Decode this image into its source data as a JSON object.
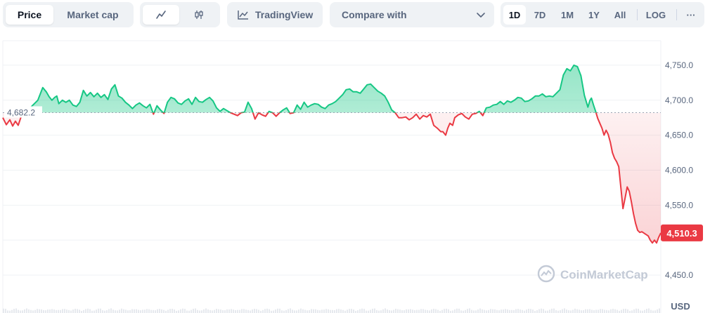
{
  "toolbar": {
    "tabs": [
      "Price",
      "Market cap"
    ],
    "active_tab": "Price",
    "chart_type_icons": [
      "line-chart-icon",
      "candlestick-chart-icon"
    ],
    "tradingview_label": "TradingView",
    "compare_label": "Compare with",
    "ranges": [
      "1D",
      "7D",
      "1M",
      "1Y",
      "All"
    ],
    "active_range": "1D",
    "log_label": "LOG",
    "more_label": "···"
  },
  "chart_data": {
    "type": "area",
    "reference_value": 4682.2,
    "reference_label": "4,682.2",
    "current_value": 4510.3,
    "current_label": "4,510.3",
    "currency": "USD",
    "watermark": "CoinMarketCap",
    "ylim": [
      4440,
      4785
    ],
    "yticks": [
      4450,
      4500,
      4550,
      4600,
      4650,
      4700,
      4750
    ],
    "ytick_labels": [
      "4,450.0",
      "",
      "4,550.0",
      "4,600.0",
      "4,650.0",
      "4,700.0",
      "4,750.0"
    ],
    "grid": true,
    "colors": {
      "up": "#16c784",
      "down": "#ea3943",
      "grid": "#eff2f5",
      "axis_text": "#58667e"
    },
    "points": [
      [
        0,
        4675
      ],
      [
        5,
        4665
      ],
      [
        10,
        4672
      ],
      [
        14,
        4663
      ],
      [
        18,
        4670
      ],
      [
        22,
        4664
      ],
      [
        26,
        4676
      ],
      [
        30,
        4683
      ],
      [
        40,
        4690
      ],
      [
        50,
        4700
      ],
      [
        57,
        4718
      ],
      [
        62,
        4712
      ],
      [
        66,
        4705
      ],
      [
        70,
        4700
      ],
      [
        74,
        4704
      ],
      [
        77,
        4706
      ],
      [
        80,
        4695
      ],
      [
        85,
        4700
      ],
      [
        90,
        4697
      ],
      [
        95,
        4700
      ],
      [
        100,
        4693
      ],
      [
        105,
        4691
      ],
      [
        110,
        4697
      ],
      [
        115,
        4714
      ],
      [
        120,
        4706
      ],
      [
        125,
        4711
      ],
      [
        130,
        4705
      ],
      [
        135,
        4710
      ],
      [
        140,
        4704
      ],
      [
        145,
        4708
      ],
      [
        150,
        4701
      ],
      [
        155,
        4716
      ],
      [
        160,
        4722
      ],
      [
        165,
        4706
      ],
      [
        170,
        4703
      ],
      [
        175,
        4697
      ],
      [
        180,
        4693
      ],
      [
        185,
        4688
      ],
      [
        190,
        4693
      ],
      [
        195,
        4696
      ],
      [
        200,
        4692
      ],
      [
        205,
        4689
      ],
      [
        210,
        4694
      ],
      [
        215,
        4680
      ],
      [
        220,
        4692
      ],
      [
        225,
        4686
      ],
      [
        230,
        4681
      ],
      [
        235,
        4697
      ],
      [
        240,
        4704
      ],
      [
        245,
        4702
      ],
      [
        250,
        4696
      ],
      [
        255,
        4694
      ],
      [
        260,
        4699
      ],
      [
        265,
        4702
      ],
      [
        270,
        4694
      ],
      [
        275,
        4704
      ],
      [
        280,
        4698
      ],
      [
        285,
        4697
      ],
      [
        290,
        4701
      ],
      [
        295,
        4704
      ],
      [
        300,
        4699
      ],
      [
        305,
        4689
      ],
      [
        310,
        4684
      ],
      [
        315,
        4688
      ],
      [
        320,
        4685
      ],
      [
        325,
        4682
      ],
      [
        330,
        4680
      ],
      [
        335,
        4678
      ],
      [
        340,
        4682
      ],
      [
        345,
        4683
      ],
      [
        350,
        4697
      ],
      [
        355,
        4688
      ],
      [
        360,
        4673
      ],
      [
        365,
        4682
      ],
      [
        370,
        4679
      ],
      [
        375,
        4677
      ],
      [
        380,
        4684
      ],
      [
        385,
        4682
      ],
      [
        390,
        4677
      ],
      [
        395,
        4682
      ],
      [
        400,
        4686
      ],
      [
        405,
        4689
      ],
      [
        410,
        4681
      ],
      [
        415,
        4682
      ],
      [
        420,
        4693
      ],
      [
        425,
        4687
      ],
      [
        430,
        4697
      ],
      [
        435,
        4690
      ],
      [
        440,
        4693
      ],
      [
        445,
        4695
      ],
      [
        450,
        4694
      ],
      [
        455,
        4690
      ],
      [
        460,
        4688
      ],
      [
        465,
        4693
      ],
      [
        470,
        4695
      ],
      [
        475,
        4698
      ],
      [
        480,
        4703
      ],
      [
        485,
        4708
      ],
      [
        490,
        4715
      ],
      [
        495,
        4716
      ],
      [
        500,
        4712
      ],
      [
        505,
        4712
      ],
      [
        510,
        4710
      ],
      [
        515,
        4716
      ],
      [
        520,
        4722
      ],
      [
        525,
        4723
      ],
      [
        530,
        4718
      ],
      [
        535,
        4713
      ],
      [
        540,
        4710
      ],
      [
        545,
        4706
      ],
      [
        550,
        4697
      ],
      [
        555,
        4686
      ],
      [
        560,
        4682
      ],
      [
        565,
        4675
      ],
      [
        570,
        4675
      ],
      [
        575,
        4676
      ],
      [
        580,
        4672
      ],
      [
        585,
        4675
      ],
      [
        590,
        4680
      ],
      [
        595,
        4673
      ],
      [
        600,
        4678
      ],
      [
        605,
        4676
      ],
      [
        610,
        4680
      ],
      [
        615,
        4664
      ],
      [
        620,
        4660
      ],
      [
        625,
        4655
      ],
      [
        628,
        4655
      ],
      [
        632,
        4650
      ],
      [
        635,
        4660
      ],
      [
        638,
        4667
      ],
      [
        642,
        4664
      ],
      [
        645,
        4675
      ],
      [
        650,
        4679
      ],
      [
        655,
        4681
      ],
      [
        660,
        4676
      ],
      [
        665,
        4673
      ],
      [
        670,
        4680
      ],
      [
        675,
        4681
      ],
      [
        680,
        4684
      ],
      [
        685,
        4678
      ],
      [
        690,
        4689
      ],
      [
        695,
        4690
      ],
      [
        700,
        4693
      ],
      [
        705,
        4694
      ],
      [
        710,
        4698
      ],
      [
        715,
        4694
      ],
      [
        720,
        4699
      ],
      [
        725,
        4697
      ],
      [
        730,
        4700
      ],
      [
        735,
        4704
      ],
      [
        740,
        4703
      ],
      [
        745,
        4698
      ],
      [
        750,
        4699
      ],
      [
        755,
        4702
      ],
      [
        760,
        4706
      ],
      [
        765,
        4706
      ],
      [
        770,
        4709
      ],
      [
        775,
        4705
      ],
      [
        780,
        4706
      ],
      [
        785,
        4705
      ],
      [
        790,
        4710
      ],
      [
        795,
        4715
      ],
      [
        800,
        4736
      ],
      [
        805,
        4745
      ],
      [
        810,
        4742
      ],
      [
        815,
        4750
      ],
      [
        820,
        4748
      ],
      [
        825,
        4735
      ],
      [
        830,
        4707
      ],
      [
        835,
        4690
      ],
      [
        838,
        4700
      ],
      [
        840,
        4703
      ],
      [
        843,
        4693
      ],
      [
        846,
        4684
      ],
      [
        849,
        4674
      ],
      [
        852,
        4667
      ],
      [
        855,
        4660
      ],
      [
        858,
        4650
      ],
      [
        861,
        4657
      ],
      [
        864,
        4651
      ],
      [
        867,
        4640
      ],
      [
        870,
        4625
      ],
      [
        873,
        4617
      ],
      [
        876,
        4612
      ],
      [
        879,
        4605
      ],
      [
        882,
        4575
      ],
      [
        885,
        4545
      ],
      [
        888,
        4560
      ],
      [
        891,
        4576
      ],
      [
        894,
        4570
      ],
      [
        897,
        4555
      ],
      [
        900,
        4538
      ],
      [
        903,
        4524
      ],
      [
        906,
        4514
      ],
      [
        909,
        4511
      ],
      [
        912,
        4512
      ],
      [
        915,
        4510
      ],
      [
        918,
        4508
      ],
      [
        921,
        4506
      ],
      [
        924,
        4500
      ],
      [
        927,
        4496
      ],
      [
        930,
        4500
      ],
      [
        933,
        4496
      ],
      [
        936,
        4504
      ],
      [
        939,
        4510.3
      ]
    ]
  }
}
